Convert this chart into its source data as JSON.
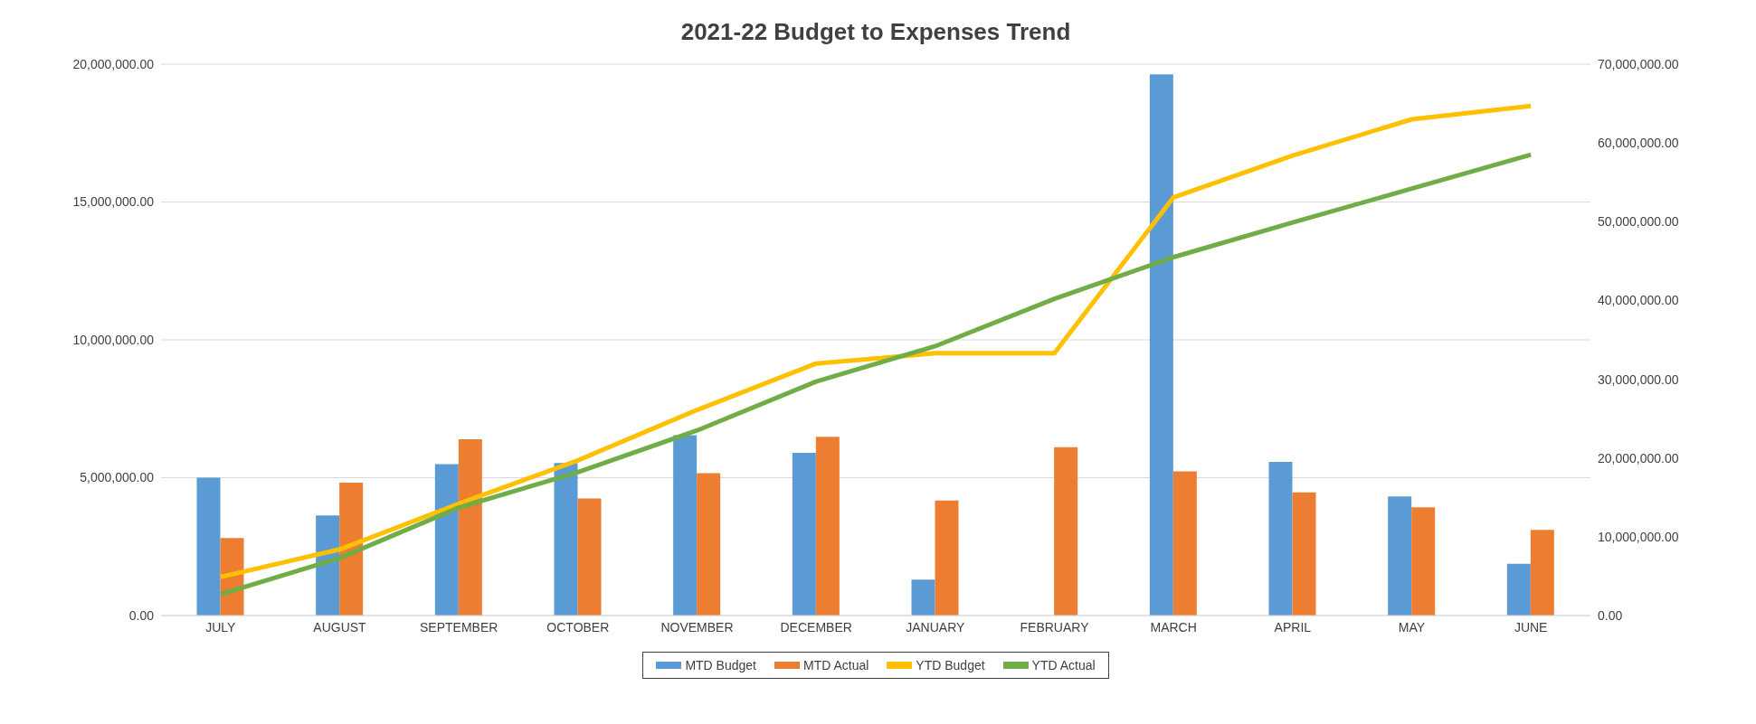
{
  "chart_data": {
    "type": "bar",
    "title": "2021-22 Budget to Expenses Trend",
    "categories": [
      "JULY",
      "AUGUST",
      "SEPTEMBER",
      "OCTOBER",
      "NOVEMBER",
      "DECEMBER",
      "JANUARY",
      "FEBRUARY",
      "MARCH",
      "APRIL",
      "MAY",
      "JUNE"
    ],
    "series": [
      {
        "name": "MTD Budget",
        "color": "#5b9bd5",
        "values": [
          5000000,
          3630000,
          5490000,
          5530000,
          6540000,
          5900000,
          1300000,
          0,
          19630000,
          5570000,
          4320000,
          1880000
        ]
      },
      {
        "name": "MTD Actual",
        "color": "#ed7d31",
        "values": [
          2810000,
          4820000,
          6390000,
          4250000,
          5160000,
          6480000,
          4170000,
          6110000,
          5230000,
          4470000,
          3930000,
          3110000
        ]
      },
      {
        "name": "YTD Budget",
        "type": "line",
        "axis": "y2",
        "color": "#ffc000",
        "values": [
          4900000,
          8400000,
          14200000,
          19700000,
          26100000,
          32000000,
          33300000,
          33300000,
          53100000,
          58400000,
          63000000,
          64700000
        ]
      },
      {
        "name": "YTD Actual",
        "type": "line",
        "axis": "y2",
        "color": "#70ad47",
        "values": [
          2700000,
          7300000,
          13700000,
          18200000,
          23500000,
          29700000,
          34200000,
          40200000,
          45500000,
          49900000,
          54200000,
          58500000
        ]
      }
    ],
    "ylim": [
      0,
      20000000
    ],
    "yticks": [
      {
        "value": 0,
        "label": "0.00"
      },
      {
        "value": 5000000,
        "label": "5,000,000.00"
      },
      {
        "value": 10000000,
        "label": "10,000,000.00"
      },
      {
        "value": 15000000,
        "label": "15,000,000.00"
      },
      {
        "value": 20000000,
        "label": "20,000,000.00"
      }
    ],
    "y2lim": [
      0,
      70000000
    ],
    "y2ticks": [
      {
        "value": 0,
        "label": "0.00"
      },
      {
        "value": 10000000,
        "label": "10,000,000.00"
      },
      {
        "value": 20000000,
        "label": "20,000,000.00"
      },
      {
        "value": 30000000,
        "label": "30,000,000.00"
      },
      {
        "value": 40000000,
        "label": "40,000,000.00"
      },
      {
        "value": 50000000,
        "label": "50,000,000.00"
      },
      {
        "value": 60000000,
        "label": "60,000,000.00"
      },
      {
        "value": 70000000,
        "label": "70,000,000.00"
      }
    ],
    "grid": "y",
    "legend": "bottom",
    "marker": "none",
    "line_style": "solid"
  }
}
